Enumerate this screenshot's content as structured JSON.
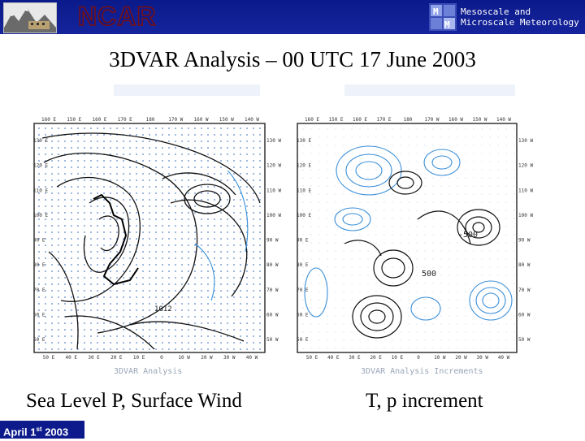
{
  "header": {
    "org_logo_text": "NCAR",
    "division_line1": "Mesoscale and",
    "division_line2": "Microscale Meteorology"
  },
  "title": "3DVAR Analysis – 00 UTC 17 June 2003",
  "panels": [
    {
      "caption": "Sea Level P, Surface Wind",
      "map_label": "3DVAR Analysis",
      "top_lon_labels": [
        "160 E",
        "150 E",
        "160 E",
        "170 E",
        "180",
        "170 W",
        "160 W",
        "150 W",
        "140 W"
      ],
      "bottom_lon_labels": [
        "50 E",
        "40 E",
        "30 E",
        "20 E",
        "10 E",
        "0",
        "10 W",
        "20 W",
        "30 W",
        "40 W"
      ],
      "left_lat_labels": [
        "130 E",
        "120 E",
        "110 E",
        "100 E",
        "90 E",
        "80 E",
        "70 E",
        "60 E",
        "50 E"
      ],
      "right_lat_labels": [
        "130 W",
        "120 W",
        "110 W",
        "100 W",
        "90 W",
        "80 W",
        "70 W",
        "60 W",
        "50 W"
      ],
      "contour_value": "1012"
    },
    {
      "caption": "T, p increment",
      "map_label": "3DVAR Analysis Increments",
      "top_lon_labels": [
        "160 E",
        "150 E",
        "160 E",
        "170 E",
        "180",
        "170 W",
        "160 W",
        "150 W",
        "140 W"
      ],
      "bottom_lon_labels": [
        "50 E",
        "40 E",
        "30 E",
        "20 E",
        "10 E",
        "0",
        "10 W",
        "20 W",
        "30 W",
        "40 W"
      ],
      "left_lat_labels": [
        "130 E",
        "120 E",
        "110 E",
        "100 E",
        "90 E",
        "80 E",
        "70 E",
        "60 E",
        "50 E"
      ],
      "right_lat_labels": [
        "130 W",
        "120 W",
        "110 W",
        "100 W",
        "90 W",
        "80 W",
        "70 W",
        "60 W",
        "50 W"
      ],
      "contour_value": "-500",
      "contour_value_2": "500"
    }
  ],
  "footer": {
    "date_prefix": "April 1",
    "date_suffix": "st",
    "date_year": " 2003"
  },
  "colors": {
    "header_bg": "#15249c",
    "contour_black": "#111111",
    "contour_blue": "#3a8fd8",
    "wind_grid": "#5a86c8"
  }
}
